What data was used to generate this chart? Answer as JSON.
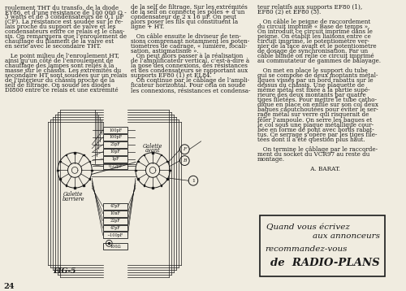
{
  "bg_color": "#f0ece0",
  "text_color": "#1a1a1a",
  "page_number": "24",
  "col1_lines": [
    "roulement THT du transfo, de la diode",
    "EY86, et d’une résistance de 100 000 Ω -",
    "3 watts et de 3 condensateurs de 0,1 μF",
    "(CF). La résistance est soudée sur le re-",
    "lais proche du support de valve et les",
    "condensateurs entre ce relais et le chas-",
    "sis. On remarquera que l’enroulement de",
    "chauffage du filament de la valve est",
    "en série avec le secondaire THT.",
    "",
    "   Le point milieu de l’enroulement HT,",
    "ainsi qu’un côté de l’enroulement de",
    "chauffage des lampes sont reliés à la",
    "masse sur le châssis. Les extrémités du",
    "secondaire HT sont soudées sur un relais",
    "de l’intérieur du châssis proche de la",
    "self de filtrage. On soude les diodes",
    "DI800 entre ce relais et une extrémité"
  ],
  "col2_lines": [
    "de la self de filtrage. Sur les extrémités",
    "de la self on connecte les pôles + d’un",
    "condensateur de 2 x 16 μF. On peut",
    "alors poser les fils qui constituent la",
    "ligne + HT.",
    "",
    "   On câble ensuite le diviseur de ten-",
    "sions comprenant notamment les poten-",
    "tiomètres de cadrage, « lumière, focali-",
    "sation, astigmatisme ».",
    "   On peut alors passer à la réalisation",
    "de l’amplificateur vertical, c’est-à-dire à",
    "la pose des connexions, des résistances",
    "et des condensateurs se rapportant aux",
    "supports EF80 (1) et EL84.",
    "   On continue par le câblage de l’ampli-",
    "ficateur horizontal. Pour cela on soude",
    "les connexions, résistances et condensa-"
  ],
  "col3_lines": [
    "teur relatifs aux supports EF80 (1),",
    "EF80 (2) et EF80 (3).",
    "",
    "   On câble le peigne de raccordement",
    "du circuit imprimé « Base de temps ».",
    "On introduit ce circuit imprimé dans le",
    "peigne. On établit les liaisons entre ce",
    "circuit imprimé, le potentiomètre ver-",
    "nier de la face avant et le potentiomètre",
    "de dosage de synchronisation. Par un",
    "câble blindé on relie ce circuit imprimé",
    "au commutateur de gammes de balayage.",
    "",
    "   On met en place le support du tube",
    "qui se compose de deux montants métal-",
    "liques vissés par un bord rabattu sur le",
    "dessus du châssis. Une plaquette de",
    "même métal est fixée à la partie supé-",
    "rieure des deux montants par quatre",
    "tiges filetées. Pour mettre le tube catho-",
    "dique en place on enfile sur son col deux",
    "bagues caoutchoutées pour éviter le ser-",
    "rage métal sur verre qui risquerait de",
    "fêler l’ampoule. On serre les bagues et",
    "le col sous une plaque métallique cour-",
    "bée en forme de pont avec bords rabat-",
    "tus. Ce serrage s’opère par les tiges file-",
    "tées dont il a été question plus haut.",
    "",
    "   On termine le câblage par le raccorde-",
    "ment du socket du VCR97 au reste du",
    "montage.",
    "",
    "                             A. BARAT."
  ],
  "cap_top": [
    "100pF",
    "100pF",
    "25pF",
    "10pF",
    "1pF",
    "0,22pF"
  ],
  "cap_bot": [
    "47pF",
    "10nF",
    "22pF",
    "47pF",
    "~100pF"
  ],
  "fig_label": "FIG-5",
  "adv_line1": "Quand vous écrivez",
  "adv_line2": "aux annonceurs",
  "adv_line3": "recommandez-vous",
  "adv_line4": "de  RADIO-PLANS"
}
